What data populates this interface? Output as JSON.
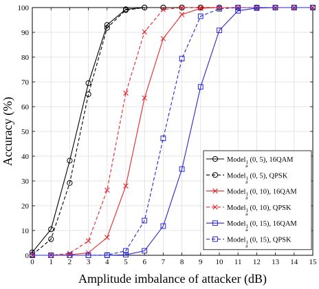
{
  "chart_data": {
    "type": "line",
    "xlabel": "Amplitude imbalance of attacker (dB)",
    "ylabel": "Accuracy (%)",
    "xlim": [
      0,
      15
    ],
    "ylim": [
      0,
      100
    ],
    "xticks": [
      0,
      1,
      2,
      3,
      4,
      5,
      6,
      7,
      8,
      9,
      10,
      11,
      12,
      13,
      14,
      15
    ],
    "yticks": [
      0,
      10,
      20,
      30,
      40,
      50,
      60,
      70,
      80,
      90,
      100
    ],
    "grid": true,
    "legend_position": "bottom-right",
    "x": [
      0,
      1,
      2,
      3,
      4,
      5,
      6,
      7,
      8,
      9,
      10,
      11,
      12,
      13,
      14,
      15
    ],
    "series": [
      {
        "name_main": "Model",
        "name_sub1": "1",
        "name_sub2": "a",
        "name_rest": "(0, 5), 16QAM",
        "color": "#000000",
        "dash": "solid",
        "marker": "circle",
        "values": [
          1.2,
          10.5,
          38.2,
          69.5,
          93.0,
          99.3,
          100,
          100,
          100,
          100,
          100,
          100,
          100,
          100,
          100,
          100
        ]
      },
      {
        "name_main": "Model",
        "name_sub1": "1",
        "name_sub2": "a",
        "name_rest": "(0, 5), QPSK",
        "color": "#000000",
        "dash": "dashed",
        "marker": "circle",
        "values": [
          0.2,
          6.5,
          29.2,
          65.0,
          91.8,
          99.0,
          100,
          100,
          100,
          100,
          100,
          100,
          100,
          100,
          100,
          100
        ]
      },
      {
        "name_main": "Model",
        "name_sub1": "1",
        "name_sub2": "a",
        "name_rest": "(0, 10), 16QAM",
        "color": "#e8232a",
        "dash": "solid",
        "marker": "x",
        "values": [
          0,
          0,
          0.2,
          1.0,
          7.2,
          28.0,
          63.5,
          87.5,
          97.2,
          99.7,
          100,
          100,
          100,
          100,
          100,
          100
        ]
      },
      {
        "name_main": "Model",
        "name_sub1": "1",
        "name_sub2": "a",
        "name_rest": "(0, 10), QPSK",
        "color": "#e8232a",
        "dash": "dashed",
        "marker": "x",
        "values": [
          0,
          0,
          0.8,
          5.8,
          26.3,
          65.5,
          90.2,
          99.2,
          100,
          100,
          100,
          100,
          100,
          100,
          100,
          100
        ]
      },
      {
        "name_main": "Model",
        "name_sub1": "1",
        "name_sub2": "a",
        "name_rest": "(0, 15), 16QAM",
        "color": "#2424d6",
        "dash": "solid",
        "marker": "square",
        "values": [
          0,
          0,
          0,
          0,
          0,
          0.2,
          1.8,
          11.8,
          34.8,
          68.0,
          90.8,
          98.7,
          99.8,
          100,
          100,
          100
        ]
      },
      {
        "name_main": "Model",
        "name_sub1": "1",
        "name_sub2": "a",
        "name_rest": "(0, 15), QPSK",
        "color": "#2424d6",
        "dash": "dashed",
        "marker": "square",
        "values": [
          0,
          0,
          0,
          0,
          0.1,
          1.8,
          14.0,
          47.2,
          79.4,
          96.5,
          99.5,
          100,
          100,
          100,
          100,
          100
        ]
      }
    ]
  }
}
